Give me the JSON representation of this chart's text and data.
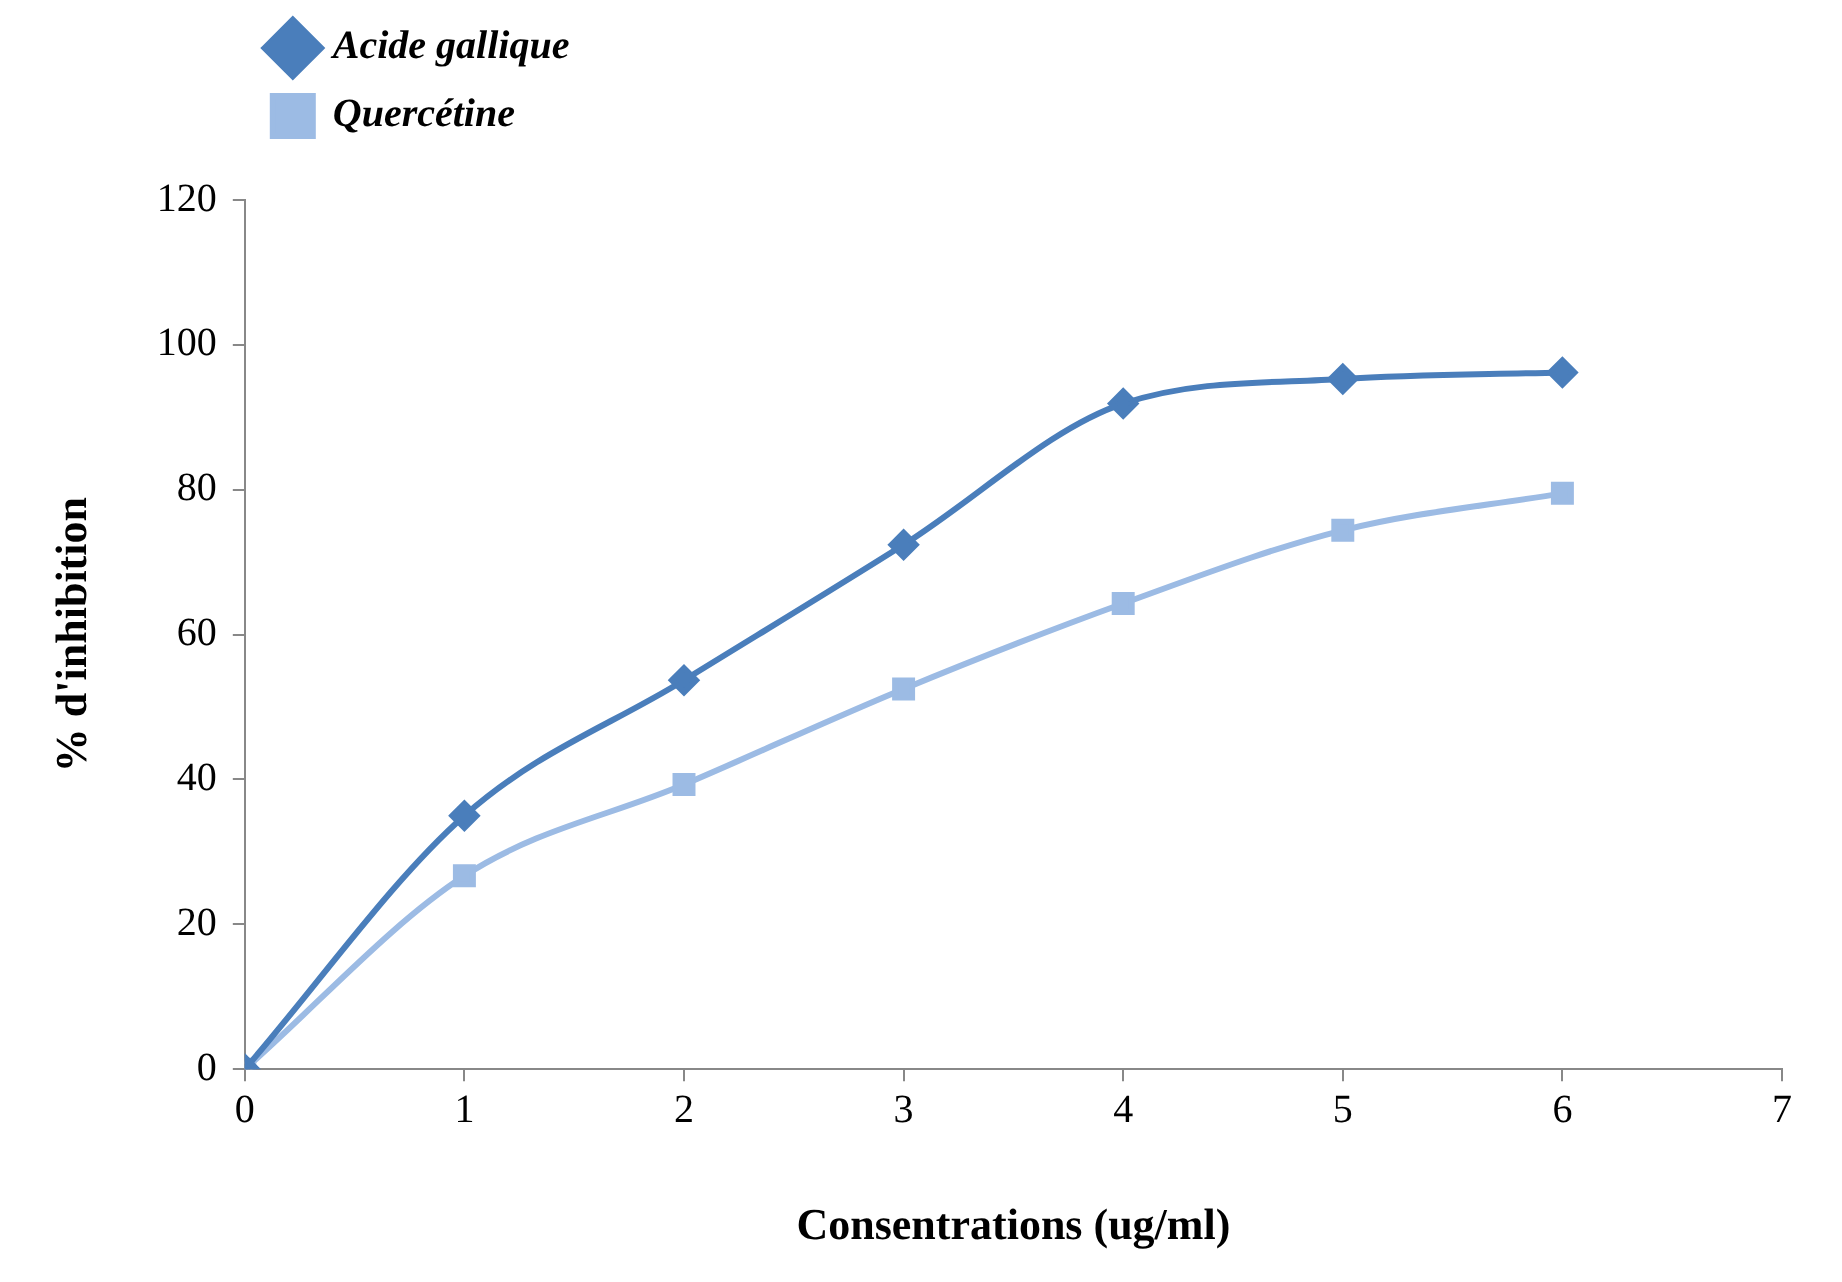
{
  "chart_data": {
    "type": "line",
    "xlabel": "Consentrations (ug/ml)",
    "ylabel": "% d'inhibition",
    "xlim": [
      0,
      7
    ],
    "xticks": [
      0,
      1,
      2,
      3,
      4,
      5,
      6,
      7
    ],
    "ylim": [
      0,
      120
    ],
    "yticks": [
      0,
      20,
      40,
      60,
      80,
      100,
      120
    ],
    "grid": false,
    "legend": "top left",
    "line_style": "solid",
    "x": [
      0,
      1,
      2,
      3,
      4,
      5,
      6
    ],
    "series": [
      {
        "name": "Acide gallique",
        "color": "#4a7ebb",
        "marker": "diamond",
        "values": [
          0,
          35,
          53.7,
          72.4,
          91.9,
          95.3,
          96.2
        ]
      },
      {
        "name": "Quercétine",
        "color": "#9cbbe4",
        "marker": "square",
        "values": [
          0,
          26.7,
          39.3,
          52.5,
          64.3,
          74.4,
          79.5
        ]
      }
    ]
  }
}
